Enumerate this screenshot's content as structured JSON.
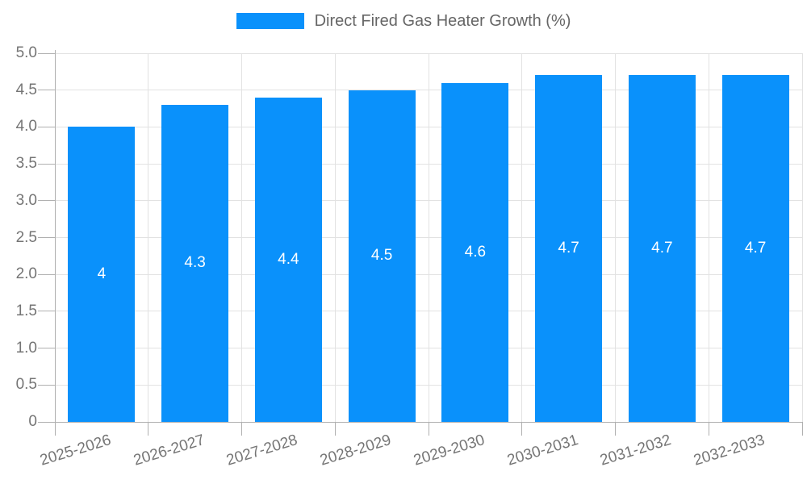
{
  "chart_data": {
    "type": "bar",
    "title": "",
    "xlabel": "",
    "ylabel": "",
    "legend_position": "top",
    "grid": true,
    "categories": [
      "2025-2026",
      "2026-2027",
      "2027-2028",
      "2028-2029",
      "2029-2030",
      "2030-2031",
      "2031-2032",
      "2032-2033"
    ],
    "series": [
      {
        "name": "Direct Fired Gas Heater Growth (%)",
        "values": [
          4,
          4.3,
          4.4,
          4.5,
          4.6,
          4.7,
          4.7,
          4.7
        ]
      }
    ],
    "value_labels": [
      "4",
      "4.3",
      "4.4",
      "4.5",
      "4.6",
      "4.7",
      "4.7",
      "4.7"
    ],
    "ylim": [
      0,
      5
    ],
    "ytick_step": 0.5,
    "ytick_labels": [
      "0",
      "0.5",
      "1.0",
      "1.5",
      "2.0",
      "2.5",
      "3.0",
      "3.5",
      "4.0",
      "4.5",
      "5.0"
    ],
    "colors": {
      "bar": "#0a91fb",
      "gridline": "#e2e2e2",
      "axis_line": "#b0b0b0",
      "tick": "#b0b0b0",
      "axis_text": "#757575",
      "legend_text": "#666666",
      "value_text": "#ffffff",
      "background": "#ffffff"
    }
  }
}
